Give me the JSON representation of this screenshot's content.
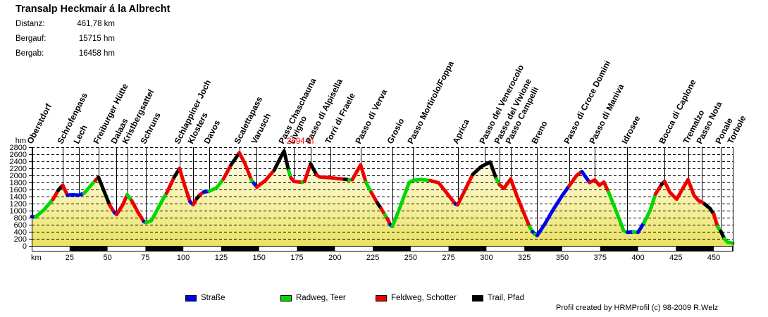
{
  "header": {
    "title": "Transalp Heckmair á la Albrecht",
    "stats": [
      {
        "label": "Distanz:",
        "value": "461,78 km"
      },
      {
        "label": "Bergauf:",
        "value": "15715 hm"
      },
      {
        "label": "Bergab:",
        "value": "16458 hm"
      }
    ]
  },
  "chart_data": {
    "type": "area",
    "title": "Transalp Heckmair á la Albrecht",
    "xlabel": "km",
    "ylabel": "hm",
    "xlim": [
      0,
      462.5
    ],
    "ylim": [
      0,
      2800
    ],
    "x_ticks": [
      25,
      50,
      75,
      100,
      125,
      150,
      175,
      200,
      225,
      250,
      275,
      300,
      325,
      350,
      375,
      400,
      425,
      450
    ],
    "y_ticks": [
      0,
      200,
      400,
      600,
      800,
      1000,
      1200,
      1400,
      1600,
      1800,
      2000,
      2200,
      2400,
      2600,
      2800
    ],
    "grid": "horizontal-dashed",
    "fill_gradient": [
      "#FFFEF4",
      "#F7F1A8",
      "#E9E262"
    ],
    "annotation": {
      "text": "2694 m",
      "km": 168.4,
      "color": "#FF0000"
    },
    "surfaces": {
      "B": {
        "label": "Straße",
        "color": "#0000F0"
      },
      "G": {
        "label": "Radweg, Teer",
        "color": "#00D800"
      },
      "R": {
        "label": "Feldweg, Schotter",
        "color": "#EE0000"
      },
      "T": {
        "label": "Trail, Pfad",
        "color": "#000000"
      }
    },
    "waypoints": [
      {
        "name": "Oberstdorf",
        "km": 0.5
      },
      {
        "name": "Schrofenpass",
        "km": 20.5
      },
      {
        "name": "Lech",
        "km": 31
      },
      {
        "name": "Freiburger Hütte",
        "km": 44
      },
      {
        "name": "Dalaas",
        "km": 56
      },
      {
        "name": "Kristbergsattel",
        "km": 63
      },
      {
        "name": "Schruns",
        "km": 75.5
      },
      {
        "name": "Schlappiner Joch",
        "km": 97.5
      },
      {
        "name": "Klosters",
        "km": 106.5
      },
      {
        "name": "Davos",
        "km": 117
      },
      {
        "name": "Scalettapass",
        "km": 137
      },
      {
        "name": "Varusch",
        "km": 148.5
      },
      {
        "name": "Pass Chaschauna",
        "km": 166.5
      },
      {
        "name": "Livigno",
        "km": 173
      },
      {
        "name": "Passo di Alpisella",
        "km": 184
      },
      {
        "name": "Torri di Fraele",
        "km": 197
      },
      {
        "name": "Passo di Verva",
        "km": 217
      },
      {
        "name": "Grosio",
        "km": 238
      },
      {
        "name": "Passo Mortirolo/Foppa",
        "km": 251.5
      },
      {
        "name": "Aprica",
        "km": 281
      },
      {
        "name": "Passo del Venerocolo",
        "km": 299
      },
      {
        "name": "Passo del Vivione",
        "km": 308.5
      },
      {
        "name": "Passo Campelli",
        "km": 316
      },
      {
        "name": "Breno",
        "km": 333.5
      },
      {
        "name": "Passo di Croce Domini",
        "km": 354.5
      },
      {
        "name": "Passo di Maniva",
        "km": 371.5
      },
      {
        "name": "Idrosee",
        "km": 393
      },
      {
        "name": "Bocca di Caplone",
        "km": 417.5
      },
      {
        "name": "Tremalzo",
        "km": 433
      },
      {
        "name": "Passo Nota",
        "km": 442
      },
      {
        "name": "Ponale",
        "km": 454.5
      },
      {
        "name": "Torbole",
        "km": 462.5
      }
    ],
    "profile": [
      [
        0,
        830,
        "B"
      ],
      [
        2.5,
        820,
        "B"
      ],
      [
        8,
        1020,
        "G"
      ],
      [
        14,
        1320,
        "G"
      ],
      [
        17.5,
        1580,
        "R"
      ],
      [
        20.5,
        1720,
        "T"
      ],
      [
        23.5,
        1440,
        "R"
      ],
      [
        27,
        1450,
        "B"
      ],
      [
        31,
        1440,
        "B"
      ],
      [
        34.5,
        1490,
        "B"
      ],
      [
        42,
        1860,
        "G"
      ],
      [
        44,
        1950,
        "R"
      ],
      [
        51.5,
        1150,
        "T"
      ],
      [
        54.5,
        950,
        "R"
      ],
      [
        56,
        890,
        "B"
      ],
      [
        60,
        1160,
        "R"
      ],
      [
        63,
        1450,
        "R"
      ],
      [
        66,
        1280,
        "G"
      ],
      [
        70,
        960,
        "R"
      ],
      [
        74,
        690,
        "R"
      ],
      [
        75.5,
        660,
        "B"
      ],
      [
        79,
        720,
        "G"
      ],
      [
        86,
        1280,
        "G"
      ],
      [
        89,
        1500,
        "G"
      ],
      [
        94,
        1950,
        "R"
      ],
      [
        97.5,
        2200,
        "T"
      ],
      [
        101,
        1700,
        "R"
      ],
      [
        104.5,
        1250,
        "R"
      ],
      [
        106.5,
        1170,
        "B"
      ],
      [
        109,
        1350,
        "R"
      ],
      [
        111,
        1450,
        "T"
      ],
      [
        113.5,
        1530,
        "R"
      ],
      [
        117,
        1550,
        "B"
      ],
      [
        122,
        1650,
        "G"
      ],
      [
        126.5,
        1900,
        "G"
      ],
      [
        131.5,
        2300,
        "R"
      ],
      [
        137,
        2640,
        "T"
      ],
      [
        140.5,
        2350,
        "R"
      ],
      [
        145,
        1870,
        "R"
      ],
      [
        146.5,
        1780,
        "G"
      ],
      [
        148.5,
        1670,
        "B"
      ],
      [
        154,
        1850,
        "R"
      ],
      [
        160,
        2150,
        "R"
      ],
      [
        163.5,
        2450,
        "T"
      ],
      [
        166.5,
        2694,
        "T"
      ],
      [
        169.5,
        2130,
        "T"
      ],
      [
        171,
        1930,
        "G"
      ],
      [
        173,
        1830,
        "R"
      ],
      [
        178.5,
        1805,
        "R"
      ],
      [
        180,
        1830,
        "G"
      ],
      [
        184,
        2330,
        "R"
      ],
      [
        188,
        2010,
        "T"
      ],
      [
        190,
        1955,
        "R"
      ],
      [
        197,
        1935,
        "R"
      ],
      [
        206.5,
        1890,
        "R"
      ],
      [
        209.5,
        1875,
        "T"
      ],
      [
        211.5,
        1880,
        "G"
      ],
      [
        217,
        2300,
        "R"
      ],
      [
        220.5,
        1800,
        "R"
      ],
      [
        224,
        1520,
        "G"
      ],
      [
        228,
        1220,
        "R"
      ],
      [
        230.5,
        1060,
        "T"
      ],
      [
        233,
        880,
        "R"
      ],
      [
        234.5,
        780,
        "G"
      ],
      [
        236.5,
        600,
        "R"
      ],
      [
        238,
        550,
        "B"
      ],
      [
        243,
        1100,
        "G"
      ],
      [
        249,
        1800,
        "G"
      ],
      [
        251.5,
        1860,
        "G"
      ],
      [
        257,
        1885,
        "G"
      ],
      [
        263,
        1855,
        "G"
      ],
      [
        268.5,
        1790,
        "R"
      ],
      [
        279.5,
        1190,
        "R"
      ],
      [
        281,
        1165,
        "B"
      ],
      [
        286,
        1600,
        "R"
      ],
      [
        291,
        2030,
        "R"
      ],
      [
        296.5,
        2250,
        "T"
      ],
      [
        302.5,
        2380,
        "T"
      ],
      [
        306.5,
        1900,
        "T"
      ],
      [
        308.5,
        1740,
        "G"
      ],
      [
        311.5,
        1630,
        "R"
      ],
      [
        316,
        1900,
        "R"
      ],
      [
        320,
        1430,
        "R"
      ],
      [
        324.5,
        950,
        "R"
      ],
      [
        328.5,
        540,
        "R"
      ],
      [
        330.5,
        400,
        "G"
      ],
      [
        332,
        330,
        "B"
      ],
      [
        333.5,
        295,
        "G"
      ],
      [
        338.5,
        620,
        "B"
      ],
      [
        344,
        1030,
        "B"
      ],
      [
        350,
        1430,
        "B"
      ],
      [
        354.5,
        1700,
        "B"
      ],
      [
        359.5,
        2000,
        "R"
      ],
      [
        363,
        2110,
        "R"
      ],
      [
        368,
        1800,
        "B"
      ],
      [
        371.5,
        1870,
        "R"
      ],
      [
        374.5,
        1720,
        "R"
      ],
      [
        377.5,
        1810,
        "R"
      ],
      [
        380.5,
        1530,
        "R"
      ],
      [
        385.5,
        1000,
        "G"
      ],
      [
        390.5,
        430,
        "G"
      ],
      [
        393,
        385,
        "G"
      ],
      [
        397,
        395,
        "B"
      ],
      [
        400,
        385,
        "G"
      ],
      [
        404,
        660,
        "B"
      ],
      [
        408,
        1010,
        "G"
      ],
      [
        411.5,
        1470,
        "G"
      ],
      [
        415.5,
        1740,
        "R"
      ],
      [
        417.5,
        1830,
        "T"
      ],
      [
        421,
        1520,
        "R"
      ],
      [
        425.5,
        1325,
        "R"
      ],
      [
        429,
        1590,
        "R"
      ],
      [
        433,
        1880,
        "R"
      ],
      [
        437,
        1430,
        "R"
      ],
      [
        440,
        1280,
        "R"
      ],
      [
        442,
        1250,
        "R"
      ],
      [
        444,
        1185,
        "R"
      ],
      [
        447.5,
        1060,
        "T"
      ],
      [
        450,
        900,
        "T"
      ],
      [
        452.5,
        540,
        "R"
      ],
      [
        454.5,
        420,
        "G"
      ],
      [
        457,
        200,
        "T"
      ],
      [
        459,
        105,
        "G"
      ],
      [
        462.5,
        75,
        "G"
      ]
    ]
  },
  "legend": [
    {
      "label": "Straße",
      "color": "#0000F0"
    },
    {
      "label": "Radweg, Teer",
      "color": "#00D800"
    },
    {
      "label": "Feldweg, Schotter",
      "color": "#EE0000"
    },
    {
      "label": "Trail, Pfad",
      "color": "#000000"
    }
  ],
  "footer": {
    "credit": "Profil created by HRMProfil (c) 98-2009 R.Welz"
  }
}
